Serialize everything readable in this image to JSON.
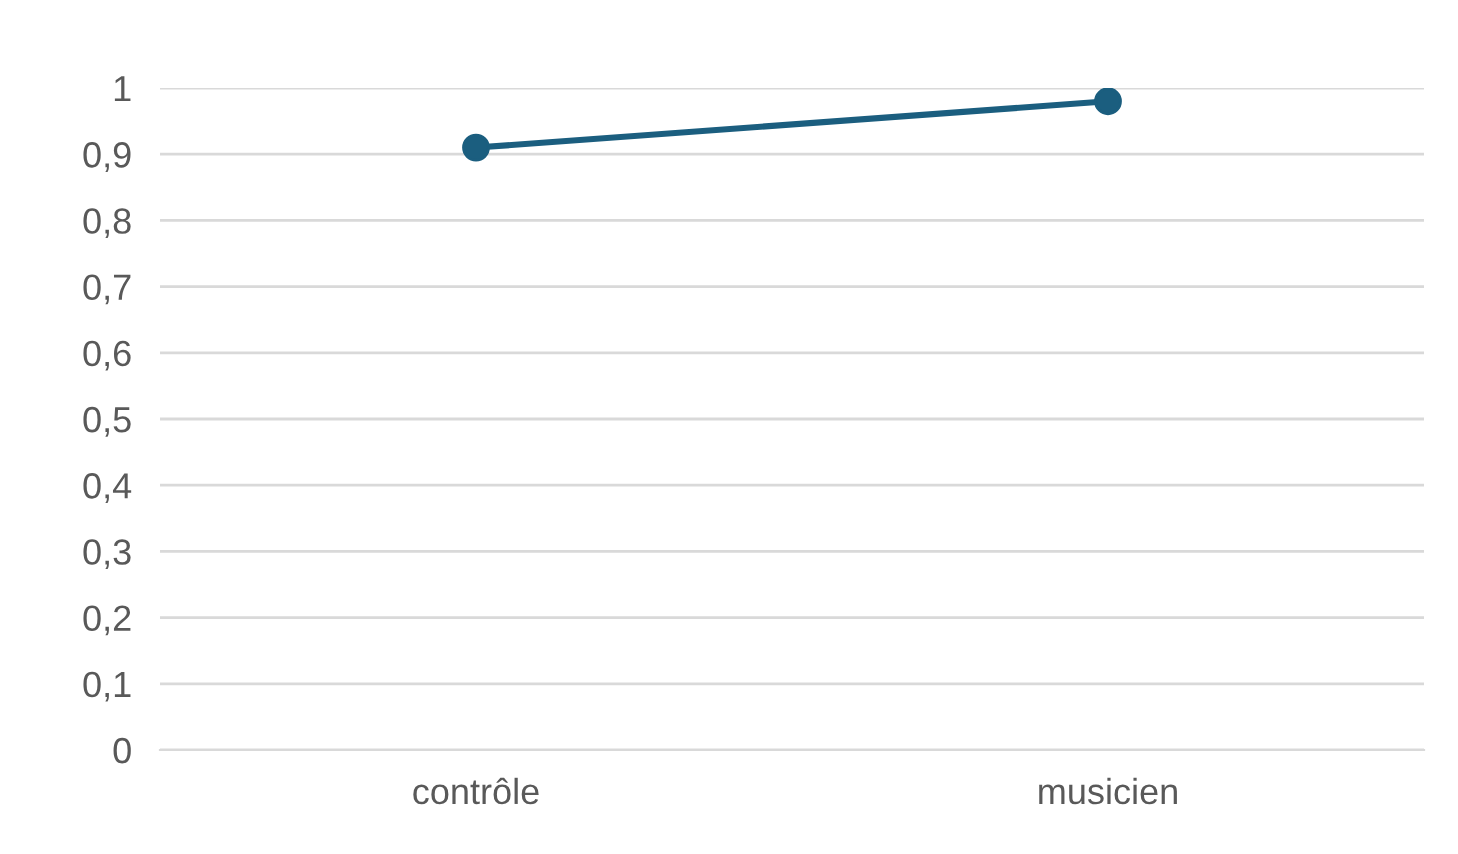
{
  "chart_data": {
    "type": "line",
    "categories": [
      "contrôle",
      "musicien"
    ],
    "series": [
      {
        "color": "#1b5e7f",
        "values": [
          0.91,
          0.98
        ]
      }
    ],
    "ylim": [
      0,
      1
    ],
    "yticks": [
      0,
      {
        "value": 0.1,
        "label": "0,1"
      },
      {
        "value": 0.2,
        "label": "0,2"
      },
      {
        "value": 0.3,
        "label": "0,3"
      },
      {
        "value": 0.4,
        "label": "0,4"
      },
      {
        "value": 0.5,
        "label": "0,5"
      },
      {
        "value": 0.6,
        "label": "0,6"
      },
      {
        "value": 0.7,
        "label": "0,7"
      },
      {
        "value": 0.8,
        "label": "0,8"
      },
      {
        "value": 0.9,
        "label": "0,9"
      },
      1
    ],
    "grid": "y",
    "marker": "circle",
    "line_style": "solid",
    "legend": false
  }
}
